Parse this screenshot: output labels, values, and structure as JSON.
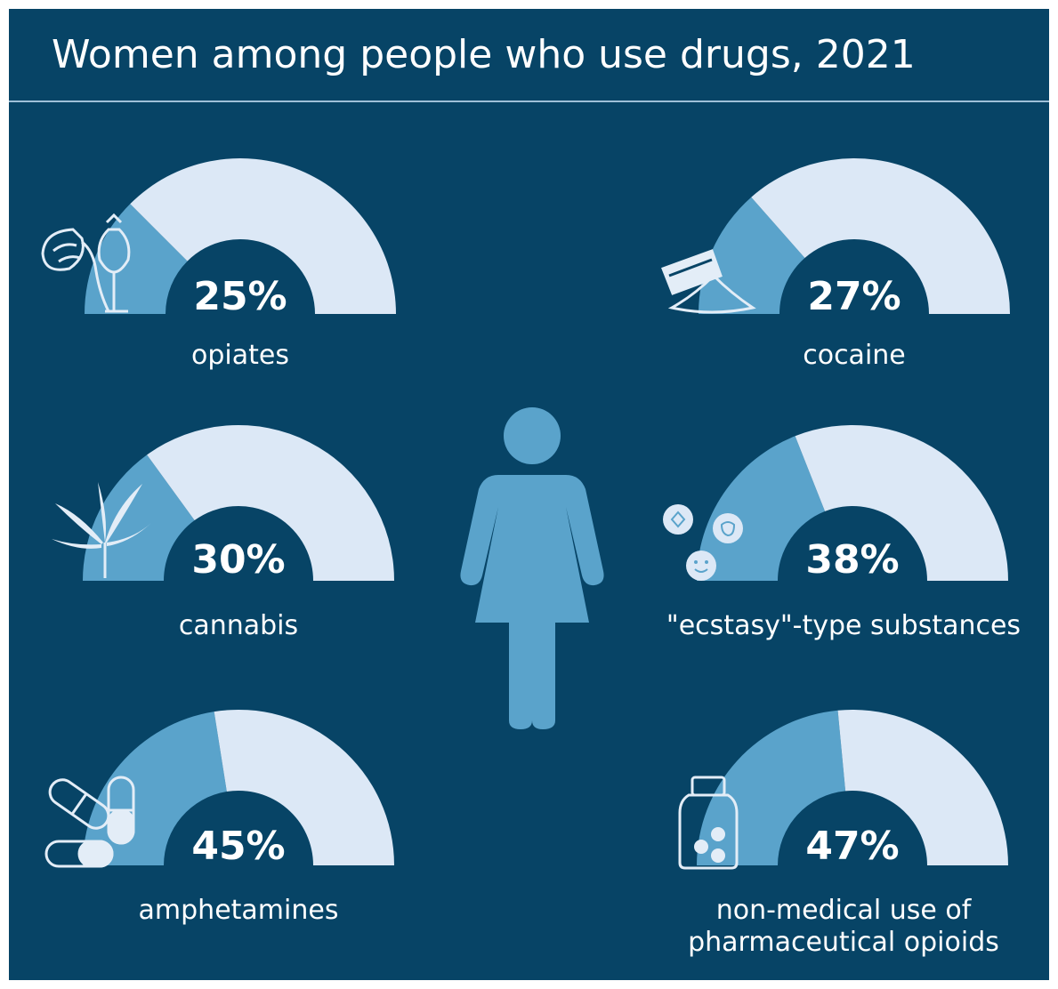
{
  "title": "Women among people who use drugs, 2021",
  "colors": {
    "background": "#074466",
    "women_share": "#5aa3cb",
    "remainder": "#dce8f6",
    "icon": "#e3edf7"
  },
  "chart_data": {
    "type": "gauge",
    "title": "Women among people who use drugs, 2021",
    "unit": "%",
    "ylim": [
      0,
      100
    ],
    "categories": [
      "opiates",
      "cocaine",
      "cannabis",
      "\"ecstasy\"-type substances",
      "amphetamines",
      "non-medical use of pharmaceutical opioids"
    ],
    "values": [
      25,
      27,
      30,
      38,
      45,
      47
    ],
    "labels": [
      "25%",
      "27%",
      "30%",
      "38%",
      "45%",
      "47%"
    ],
    "icons": [
      "poppy-icon",
      "cocaine-razor-icon",
      "cannabis-leaf-icon",
      "ecstasy-pills-icon",
      "capsules-icon",
      "pill-bottle-icon"
    ]
  },
  "center_icon": "woman-icon"
}
